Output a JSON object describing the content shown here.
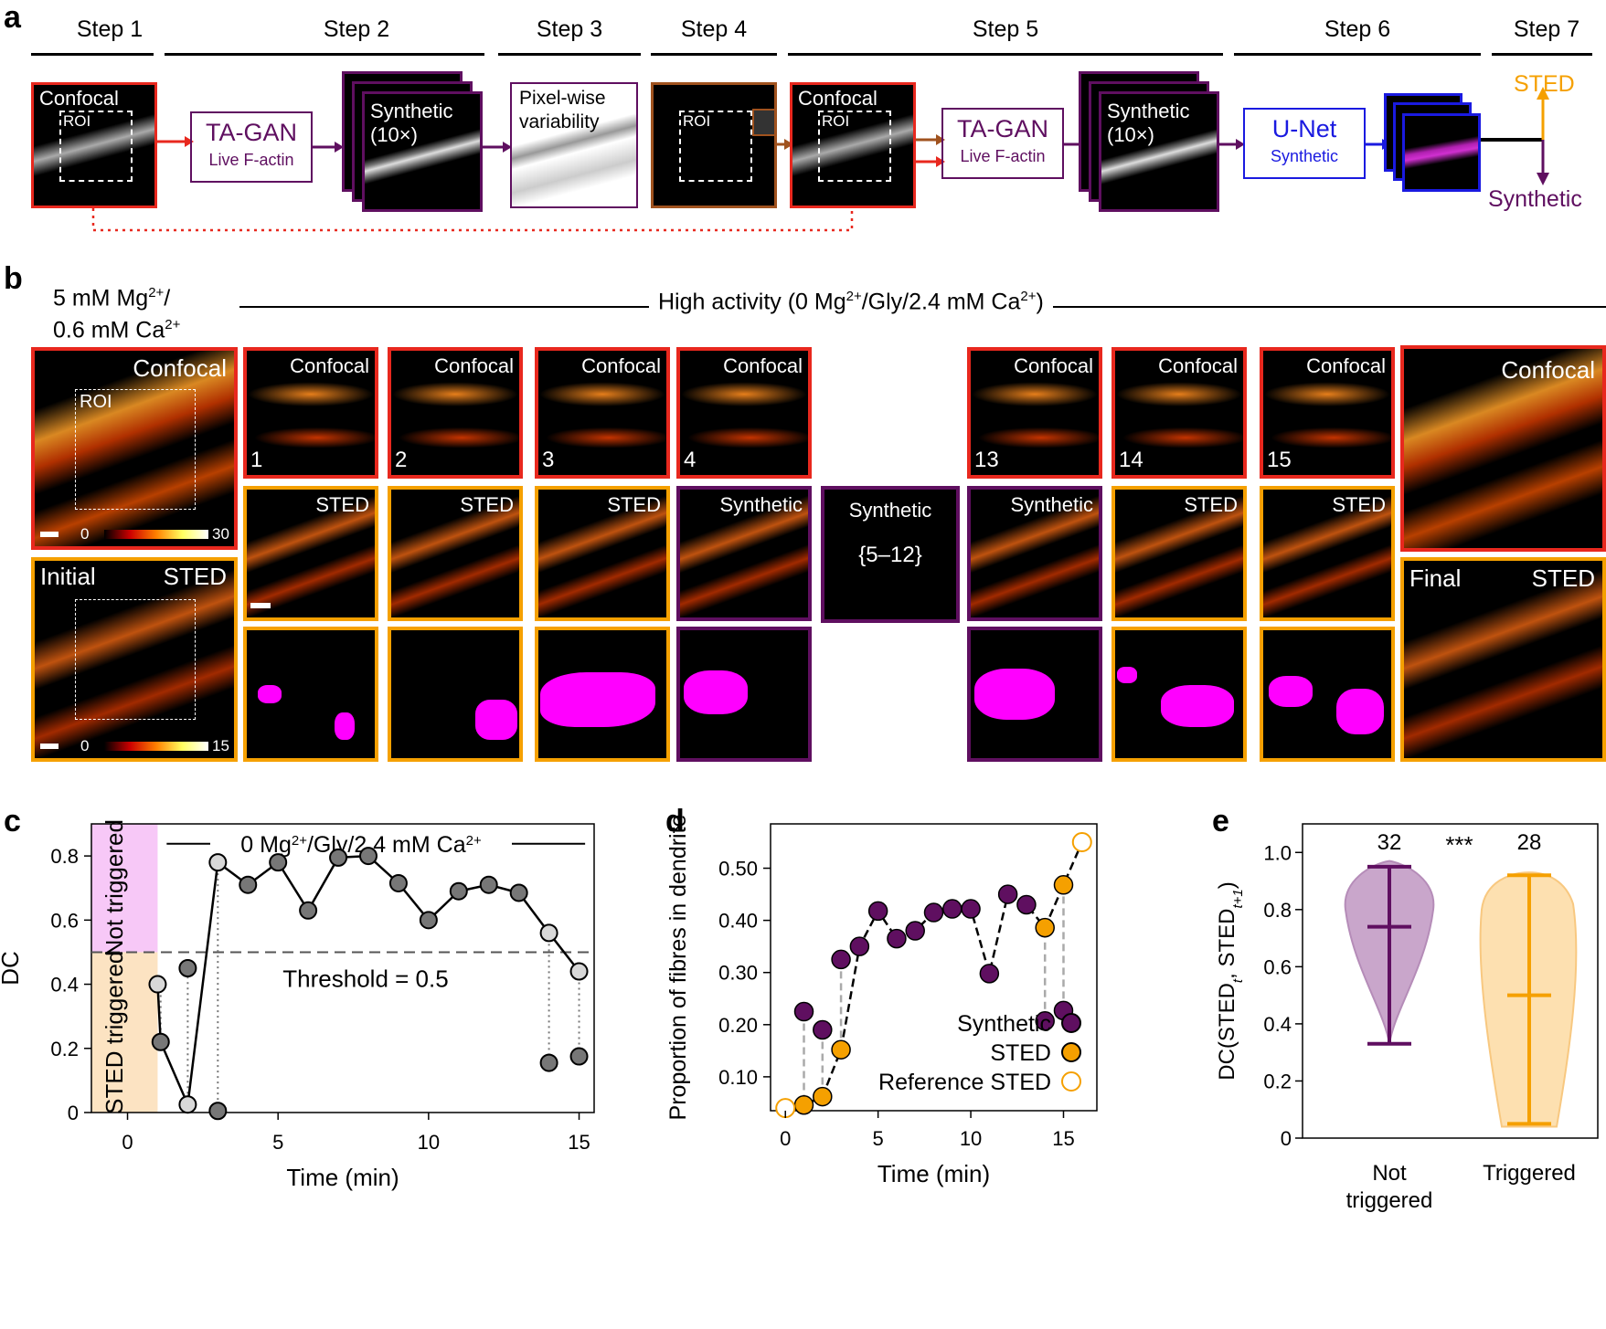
{
  "panels": {
    "a": "a",
    "b": "b",
    "c": "c",
    "d": "d",
    "e": "e"
  },
  "panel_a": {
    "steps": [
      "Step 1",
      "Step 2",
      "Step 3",
      "Step 4",
      "Step 5",
      "Step 6",
      "Step 7"
    ],
    "confocal1": "Confocal",
    "roi": "ROI",
    "tagan1": {
      "title": "TA-GAN",
      "sub": "Live F-actin"
    },
    "synthetic10x": "Synthetic",
    "x10": "(10×)",
    "pixelwise": "Pixel-wise",
    "variability": "variability",
    "confocal2": "Confocal",
    "tagan2": {
      "title": "TA-GAN",
      "sub": "Live F-actin"
    },
    "unet": {
      "title": "U-Net",
      "sub": "Synthetic"
    },
    "out_sted": "STED",
    "out_synthetic": "Synthetic",
    "colors": {
      "red": "#e8281e",
      "purple": "#5f0f60",
      "brown": "#a0521e",
      "blue": "#1a1ae0",
      "orange": "#f5a000",
      "magenta": "#ff00ff"
    }
  },
  "panel_b": {
    "left_cond_line1": "5 mM Mg",
    "left_cond_sup1": "2+",
    "left_cond_slash": "/",
    "left_cond_line2": "0.6 mM Ca",
    "left_cond_sup2": "2+",
    "high_activity": "High activity (0 Mg",
    "high_sup1": "2+",
    "high_mid": "/Gly/2.4 mM Ca",
    "high_sup2": "2+",
    "high_end": ")",
    "confocal": "Confocal",
    "sted": "STED",
    "synthetic": "Synthetic",
    "roi": "ROI",
    "initial": "Initial",
    "final": "Final",
    "scale_conf": {
      "min": "0",
      "max": "30"
    },
    "scale_sted": {
      "min": "0",
      "max": "15"
    },
    "frames": [
      "1",
      "2",
      "3",
      "4",
      "13",
      "14",
      "15"
    ],
    "rows2": [
      "STED",
      "STED",
      "STED",
      "Synthetic",
      "Synthetic",
      "STED",
      "STED"
    ],
    "synthetic_range": "{5–12}"
  },
  "panel_c": {
    "chart_data": {
      "type": "scatter",
      "xlabel": "Time (min)",
      "ylabel": "DC",
      "xlim": [
        -1.2,
        15.5
      ],
      "ylim": [
        0,
        0.9
      ],
      "xticks": [
        "0",
        "5",
        "10",
        "15"
      ],
      "yticks": [
        "0",
        "0.2",
        "0.4",
        "0.6",
        "0.8"
      ],
      "condition_label": "0 Mg2+/Gly/2.4 mM Ca2+",
      "cond_text_a": "0 Mg",
      "cond_sup_a": "2+",
      "cond_text_b": "/Gly/2.4 mM Ca",
      "cond_sup_b": "2+",
      "threshold": 0.5,
      "threshold_label": "Threshold = 0.5",
      "not_triggered_label": "Not triggered",
      "triggered_label": "STED triggered",
      "selected": [
        {
          "t": 1,
          "dc": 0.4
        },
        {
          "t": 2,
          "dc": 0.025
        },
        {
          "t": 3,
          "dc": 0.78
        },
        {
          "t": 4,
          "dc": 0.71
        },
        {
          "t": 5,
          "dc": 0.78
        },
        {
          "t": 6,
          "dc": 0.63
        },
        {
          "t": 7,
          "dc": 0.795
        },
        {
          "t": 8,
          "dc": 0.8
        },
        {
          "t": 9,
          "dc": 0.715
        },
        {
          "t": 10,
          "dc": 0.6
        },
        {
          "t": 11,
          "dc": 0.69
        },
        {
          "t": 12,
          "dc": 0.71
        },
        {
          "t": 13,
          "dc": 0.685
        },
        {
          "t": 14,
          "dc": 0.56
        },
        {
          "t": 15,
          "dc": 0.44
        }
      ],
      "line_path": [
        {
          "t": 1,
          "dc": 0.4
        },
        {
          "t": 1.1,
          "dc": 0.22
        },
        {
          "t": 2,
          "dc": 0.025
        },
        {
          "t": 3,
          "dc": 0.78
        },
        {
          "t": 4,
          "dc": 0.71
        },
        {
          "t": 5,
          "dc": 0.78
        },
        {
          "t": 6,
          "dc": 0.63
        },
        {
          "t": 7,
          "dc": 0.795
        },
        {
          "t": 8,
          "dc": 0.8
        },
        {
          "t": 9,
          "dc": 0.715
        },
        {
          "t": 10,
          "dc": 0.6
        },
        {
          "t": 11,
          "dc": 0.69
        },
        {
          "t": 12,
          "dc": 0.71
        },
        {
          "t": 13,
          "dc": 0.685
        },
        {
          "t": 14,
          "dc": 0.56
        },
        {
          "t": 15,
          "dc": 0.44
        }
      ],
      "light_points": [
        1,
        2,
        3,
        14,
        15
      ],
      "alt_points": [
        {
          "t": 1.1,
          "dc": 0.22
        },
        {
          "t": 2,
          "dc": 0.45
        },
        {
          "t": 3,
          "dc": 0.005
        },
        {
          "t": 14,
          "dc": 0.155
        },
        {
          "t": 15,
          "dc": 0.175
        }
      ]
    }
  },
  "panel_d": {
    "chart_data": {
      "type": "scatter",
      "xlabel": "Time (min)",
      "ylabel": "Proportion of fibres in dendrite",
      "xlim": [
        -0.8,
        16.8
      ],
      "ylim": [
        0.035,
        0.585
      ],
      "xticks": [
        "0",
        "5",
        "10",
        "15"
      ],
      "yticks": [
        "0.10",
        "0.20",
        "0.30",
        "0.40",
        "0.50"
      ],
      "synthetic": [
        {
          "t": 1,
          "v": 0.225
        },
        {
          "t": 2,
          "v": 0.19
        },
        {
          "t": 3,
          "v": 0.325
        },
        {
          "t": 4,
          "v": 0.35
        },
        {
          "t": 5,
          "v": 0.418
        },
        {
          "t": 6,
          "v": 0.365
        },
        {
          "t": 7,
          "v": 0.38
        },
        {
          "t": 8,
          "v": 0.415
        },
        {
          "t": 9,
          "v": 0.422
        },
        {
          "t": 10,
          "v": 0.422
        },
        {
          "t": 11,
          "v": 0.298
        },
        {
          "t": 12,
          "v": 0.45
        },
        {
          "t": 13,
          "v": 0.43
        },
        {
          "t": 14,
          "v": 0.207
        },
        {
          "t": 15,
          "v": 0.227
        }
      ],
      "sted": [
        {
          "t": 1,
          "v": 0.046
        },
        {
          "t": 2,
          "v": 0.062
        },
        {
          "t": 3,
          "v": 0.152
        },
        {
          "t": 14,
          "v": 0.386
        },
        {
          "t": 15,
          "v": 0.468
        }
      ],
      "reference": [
        {
          "t": 0,
          "v": 0.04
        },
        {
          "t": 16,
          "v": 0.55
        }
      ],
      "path": [
        {
          "t": 0,
          "v": 0.04
        },
        {
          "t": 1,
          "v": 0.046
        },
        {
          "t": 2,
          "v": 0.062
        },
        {
          "t": 3,
          "v": 0.152
        },
        {
          "t": 4,
          "v": 0.35
        },
        {
          "t": 5,
          "v": 0.418
        },
        {
          "t": 6,
          "v": 0.365
        },
        {
          "t": 7,
          "v": 0.38
        },
        {
          "t": 8,
          "v": 0.415
        },
        {
          "t": 9,
          "v": 0.422
        },
        {
          "t": 10,
          "v": 0.422
        },
        {
          "t": 11,
          "v": 0.298
        },
        {
          "t": 12,
          "v": 0.45
        },
        {
          "t": 13,
          "v": 0.43
        },
        {
          "t": 14,
          "v": 0.386
        },
        {
          "t": 15,
          "v": 0.468
        },
        {
          "t": 16,
          "v": 0.55
        }
      ],
      "legend": [
        "Synthetic",
        "STED",
        "Reference STED"
      ],
      "legend_position": "bottom-right"
    }
  },
  "panel_e": {
    "chart_data": {
      "type": "violin",
      "ylabel_main": "DC(STED",
      "ylabel_sub1": "t",
      "ylabel_mid": ", STED",
      "ylabel_sub2": "t+1",
      "ylabel_end": ")",
      "ylim": [
        0,
        1.1
      ],
      "yticks": [
        "0",
        "0.2",
        "0.4",
        "0.6",
        "0.8",
        "1.0"
      ],
      "groups": [
        {
          "label_line1": "Not",
          "label_line2": "triggered",
          "n": "32",
          "min": 0.33,
          "median": 0.74,
          "max": 0.95,
          "color": "#5f0f60"
        },
        {
          "label_line1": "Triggered",
          "label_line2": "",
          "n": "28",
          "min": 0.05,
          "median": 0.5,
          "max": 0.92,
          "color": "#f5a000"
        }
      ],
      "significance": "***"
    }
  }
}
